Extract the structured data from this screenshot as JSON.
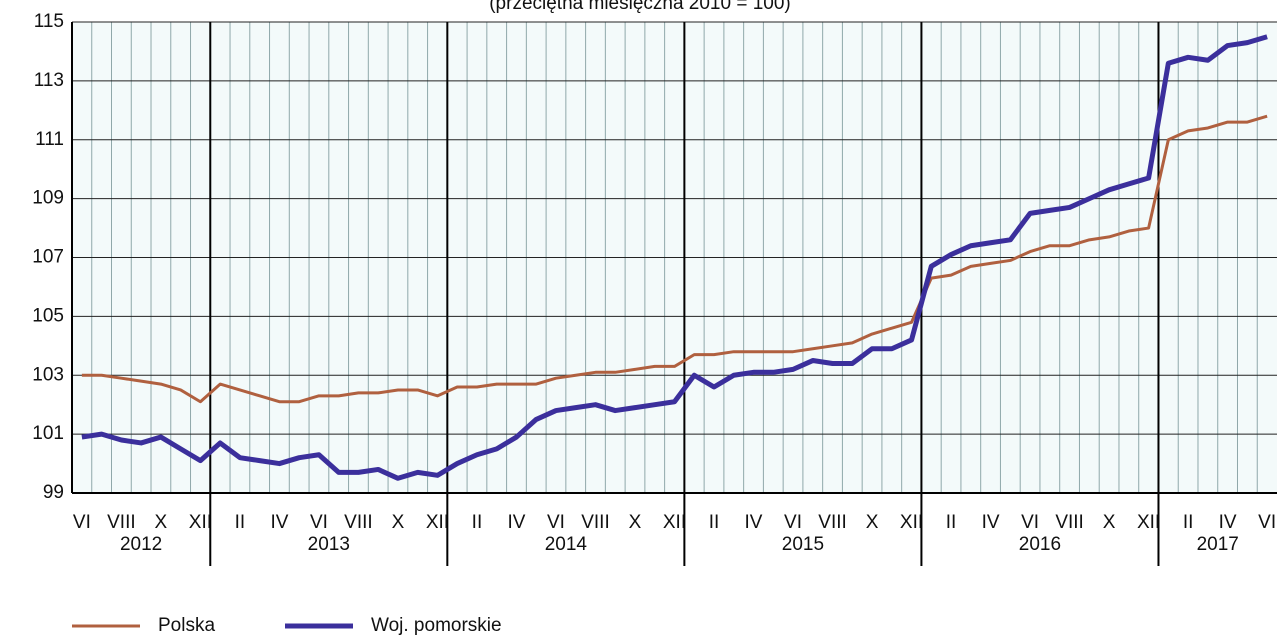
{
  "chart_data": {
    "type": "line",
    "subtitle": "(przeciętna miesięczna 2010 = 100)",
    "categories": [
      "VI",
      null,
      "VIII",
      null,
      "X",
      null,
      "XII",
      null,
      "II",
      null,
      "IV",
      null,
      "VI",
      null,
      "VIII",
      null,
      "X",
      null,
      "XII",
      null,
      "II",
      null,
      "IV",
      null,
      "VI",
      null,
      "VIII",
      null,
      "X",
      null,
      "XII",
      null,
      "II",
      null,
      "IV",
      null,
      "VI",
      null,
      "VIII",
      null,
      "X",
      null,
      "XII",
      null,
      "II",
      null,
      "IV",
      null,
      "VI",
      null,
      "VIII",
      null,
      "X",
      null,
      "XII",
      null,
      "II",
      null,
      "IV",
      null,
      "VI"
    ],
    "years": [
      {
        "label": "2012",
        "months": 7
      },
      {
        "label": "2013",
        "months": 12
      },
      {
        "label": "2014",
        "months": 12
      },
      {
        "label": "2015",
        "months": 12
      },
      {
        "label": "2016",
        "months": 12
      },
      {
        "label": "2017",
        "months": 6
      }
    ],
    "series": [
      {
        "name": "Polska",
        "color": "#b0603f",
        "width": 3,
        "values": [
          103.0,
          103.0,
          102.9,
          102.8,
          102.7,
          102.5,
          102.1,
          102.7,
          102.5,
          102.3,
          102.1,
          102.1,
          102.3,
          102.3,
          102.4,
          102.4,
          102.5,
          102.5,
          102.3,
          102.6,
          102.6,
          102.7,
          102.7,
          102.7,
          102.9,
          103.0,
          103.1,
          103.1,
          103.2,
          103.3,
          103.3,
          103.7,
          103.7,
          103.8,
          103.8,
          103.8,
          103.8,
          103.9,
          104.0,
          104.1,
          104.4,
          104.6,
          104.8,
          106.3,
          106.4,
          106.7,
          106.8,
          106.9,
          107.2,
          107.4,
          107.4,
          107.6,
          107.7,
          107.9,
          108.0,
          111.0,
          111.3,
          111.4,
          111.6,
          111.6,
          111.8
        ]
      },
      {
        "name": "Woj. pomorskie",
        "color": "#3b2f9c",
        "width": 5,
        "values": [
          100.9,
          101.0,
          100.8,
          100.7,
          100.9,
          100.5,
          100.1,
          100.7,
          100.2,
          100.1,
          100.0,
          100.2,
          100.3,
          99.7,
          99.7,
          99.8,
          99.5,
          99.7,
          99.6,
          100.0,
          100.3,
          100.5,
          100.9,
          101.5,
          101.8,
          101.9,
          102.0,
          101.8,
          101.9,
          102.0,
          102.1,
          103.0,
          102.6,
          103.0,
          103.1,
          103.1,
          103.2,
          103.5,
          103.4,
          103.4,
          103.9,
          103.9,
          104.2,
          106.7,
          107.1,
          107.4,
          107.5,
          107.6,
          108.5,
          108.6,
          108.7,
          109.0,
          109.3,
          109.5,
          109.7,
          113.6,
          113.8,
          113.7,
          114.2,
          114.3,
          114.5
        ]
      }
    ],
    "ylim": [
      99,
      115
    ],
    "yticks": [
      99,
      101,
      103,
      105,
      107,
      109,
      111,
      113,
      115
    ],
    "grid": true
  }
}
